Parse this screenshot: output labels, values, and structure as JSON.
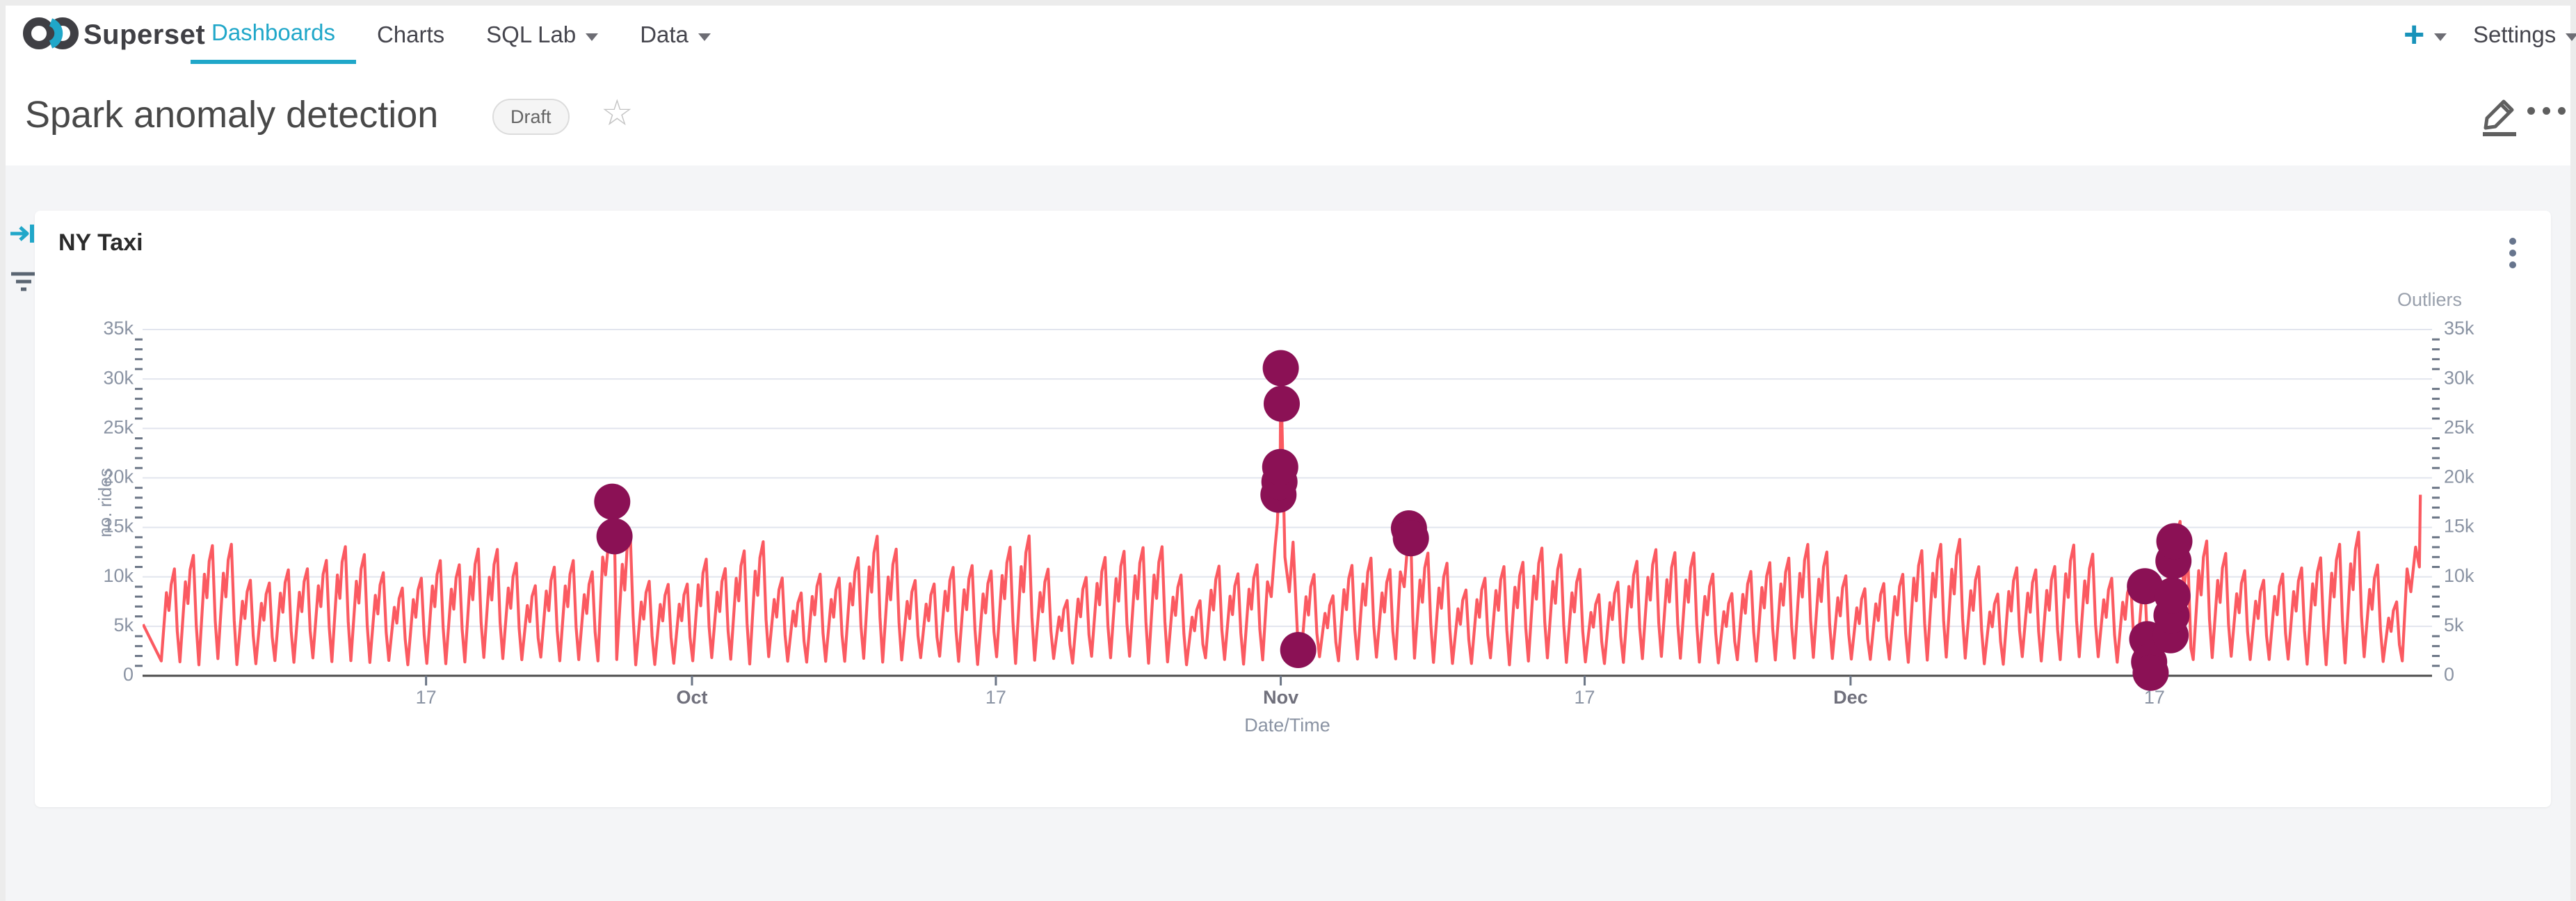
{
  "navbar": {
    "brand": "Superset",
    "items": [
      {
        "label": "Dashboards",
        "active": true,
        "caret": false
      },
      {
        "label": "Charts",
        "active": false,
        "caret": false
      },
      {
        "label": "SQL Lab",
        "active": false,
        "caret": true
      },
      {
        "label": "Data",
        "active": false,
        "caret": true
      }
    ],
    "plus_label": "+",
    "settings_label": "Settings",
    "accent_color": "#20a7c9"
  },
  "header": {
    "title": "Spark anomaly detection",
    "status_badge": "Draft"
  },
  "chart_card": {
    "title": "NY Taxi"
  },
  "chart_data": {
    "type": "line",
    "title": "NY Taxi",
    "xlabel": "Date/Time",
    "ylabel": "no. rides",
    "y2label": "Outliers",
    "ylim": [
      0,
      35000
    ],
    "grid": true,
    "y_ticks": [
      {
        "value": 0,
        "label": "0"
      },
      {
        "value": 5000,
        "label": "5k"
      },
      {
        "value": 10000,
        "label": "10k"
      },
      {
        "value": 15000,
        "label": "15k"
      },
      {
        "value": 20000,
        "label": "20k"
      },
      {
        "value": 25000,
        "label": "25k"
      },
      {
        "value": 30000,
        "label": "30k"
      },
      {
        "value": 35000,
        "label": "35k"
      }
    ],
    "x_ticks": [
      {
        "day": 14,
        "label": "17",
        "month": false
      },
      {
        "day": 28,
        "label": "Oct",
        "month": true
      },
      {
        "day": 44,
        "label": "17",
        "month": false
      },
      {
        "day": 59,
        "label": "Nov",
        "month": true
      },
      {
        "day": 75,
        "label": "17",
        "month": false
      },
      {
        "day": 89,
        "label": "Dec",
        "month": true
      },
      {
        "day": 105,
        "label": "17",
        "month": false
      }
    ],
    "x_domain_days": [
      -0.9,
      119.6
    ],
    "line": {
      "name": "no. rides",
      "color": "#fb5a61",
      "days": 119,
      "end_value": 18300,
      "gen": {
        "base_peak": 10800,
        "weekly_boost": [
          0,
          800,
          2200,
          2600,
          -600,
          -2200,
          -700
        ],
        "noise": 2400,
        "trough_base": 1100,
        "trough_noise": 900,
        "shape": [
          [
            0.04,
            "t"
          ],
          [
            0.33,
            0.78
          ],
          [
            0.46,
            0.6
          ],
          [
            0.58,
            0.88
          ],
          [
            0.75,
            1.0
          ],
          [
            0.9,
            0.42
          ]
        ]
      },
      "overrides": {
        "0": [
          [
            -0.9,
            5200
          ],
          [
            0.06,
            1500
          ],
          [
            0.33,
            8400
          ],
          [
            0.46,
            6600
          ],
          [
            0.58,
            9200
          ],
          [
            0.75,
            10800
          ],
          [
            0.9,
            4500
          ]
        ],
        "23": [
          [
            0.05,
            1500
          ],
          [
            0.3,
            12000
          ],
          [
            0.45,
            10200
          ],
          [
            0.62,
            13800
          ],
          [
            0.8,
            17600
          ],
          [
            0.92,
            14100
          ]
        ],
        "58": [
          [
            0.05,
            1600
          ],
          [
            0.3,
            9500
          ],
          [
            0.5,
            8000
          ],
          [
            0.7,
            13000
          ],
          [
            0.82,
            15500
          ],
          [
            0.88,
            18300
          ],
          [
            0.93,
            19600
          ],
          [
            0.97,
            21100
          ]
        ],
        "59": [
          [
            0.0,
            31100
          ],
          [
            0.04,
            27500
          ],
          [
            0.22,
            12000
          ],
          [
            0.45,
            8500
          ],
          [
            0.65,
            13500
          ],
          [
            0.92,
            2600
          ]
        ],
        "65": [
          [
            0.05,
            1700
          ],
          [
            0.3,
            10500
          ],
          [
            0.5,
            9000
          ],
          [
            0.75,
            14900
          ],
          [
            0.85,
            13900
          ],
          [
            0.95,
            6000
          ]
        ],
        "104": [
          [
            0.05,
            1100
          ],
          [
            0.3,
            7200
          ],
          [
            0.5,
            9050
          ],
          [
            0.62,
            3700
          ],
          [
            0.72,
            1400
          ],
          [
            0.8,
            300
          ],
          [
            0.92,
            1000
          ]
        ],
        "105": [
          [
            0.1,
            2200
          ],
          [
            0.3,
            7800
          ],
          [
            0.5,
            6000
          ],
          [
            0.7,
            9800
          ],
          [
            0.85,
            4100
          ],
          [
            0.9,
            6100
          ],
          [
            0.95,
            8100
          ]
        ],
        "106": [
          [
            0.0,
            11600
          ],
          [
            0.05,
            13600
          ],
          [
            0.35,
            15600
          ],
          [
            0.55,
            8500
          ],
          [
            0.75,
            12600
          ],
          [
            0.92,
            2800
          ]
        ],
        "118": [
          [
            0.05,
            1500
          ],
          [
            0.3,
            10800
          ],
          [
            0.5,
            8500
          ],
          [
            0.75,
            13000
          ],
          [
            0.95,
            11000
          ]
        ]
      }
    },
    "outliers": {
      "name": "Outliers",
      "color": "#8b1155",
      "points": [
        [
          23.8,
          17600
        ],
        [
          23.92,
          14100
        ],
        [
          58.88,
          18300
        ],
        [
          58.93,
          19600
        ],
        [
          58.97,
          21100
        ],
        [
          59.0,
          31100
        ],
        [
          59.05,
          27500
        ],
        [
          59.92,
          2600
        ],
        [
          65.75,
          14900
        ],
        [
          65.85,
          13900
        ],
        [
          104.5,
          9050
        ],
        [
          104.62,
          3700
        ],
        [
          104.72,
          1400
        ],
        [
          104.8,
          300
        ],
        [
          105.85,
          4100
        ],
        [
          105.9,
          6100
        ],
        [
          105.95,
          8100
        ],
        [
          106.0,
          11600
        ],
        [
          106.05,
          13600
        ]
      ]
    },
    "colors": {
      "grid": "#e2e5ee",
      "axis": "#4d4d4d",
      "tick_label": "#8a93a3",
      "month_label": "#70707c",
      "axis_title": "#8a93a3",
      "y2_title": "#99a0ac"
    }
  }
}
